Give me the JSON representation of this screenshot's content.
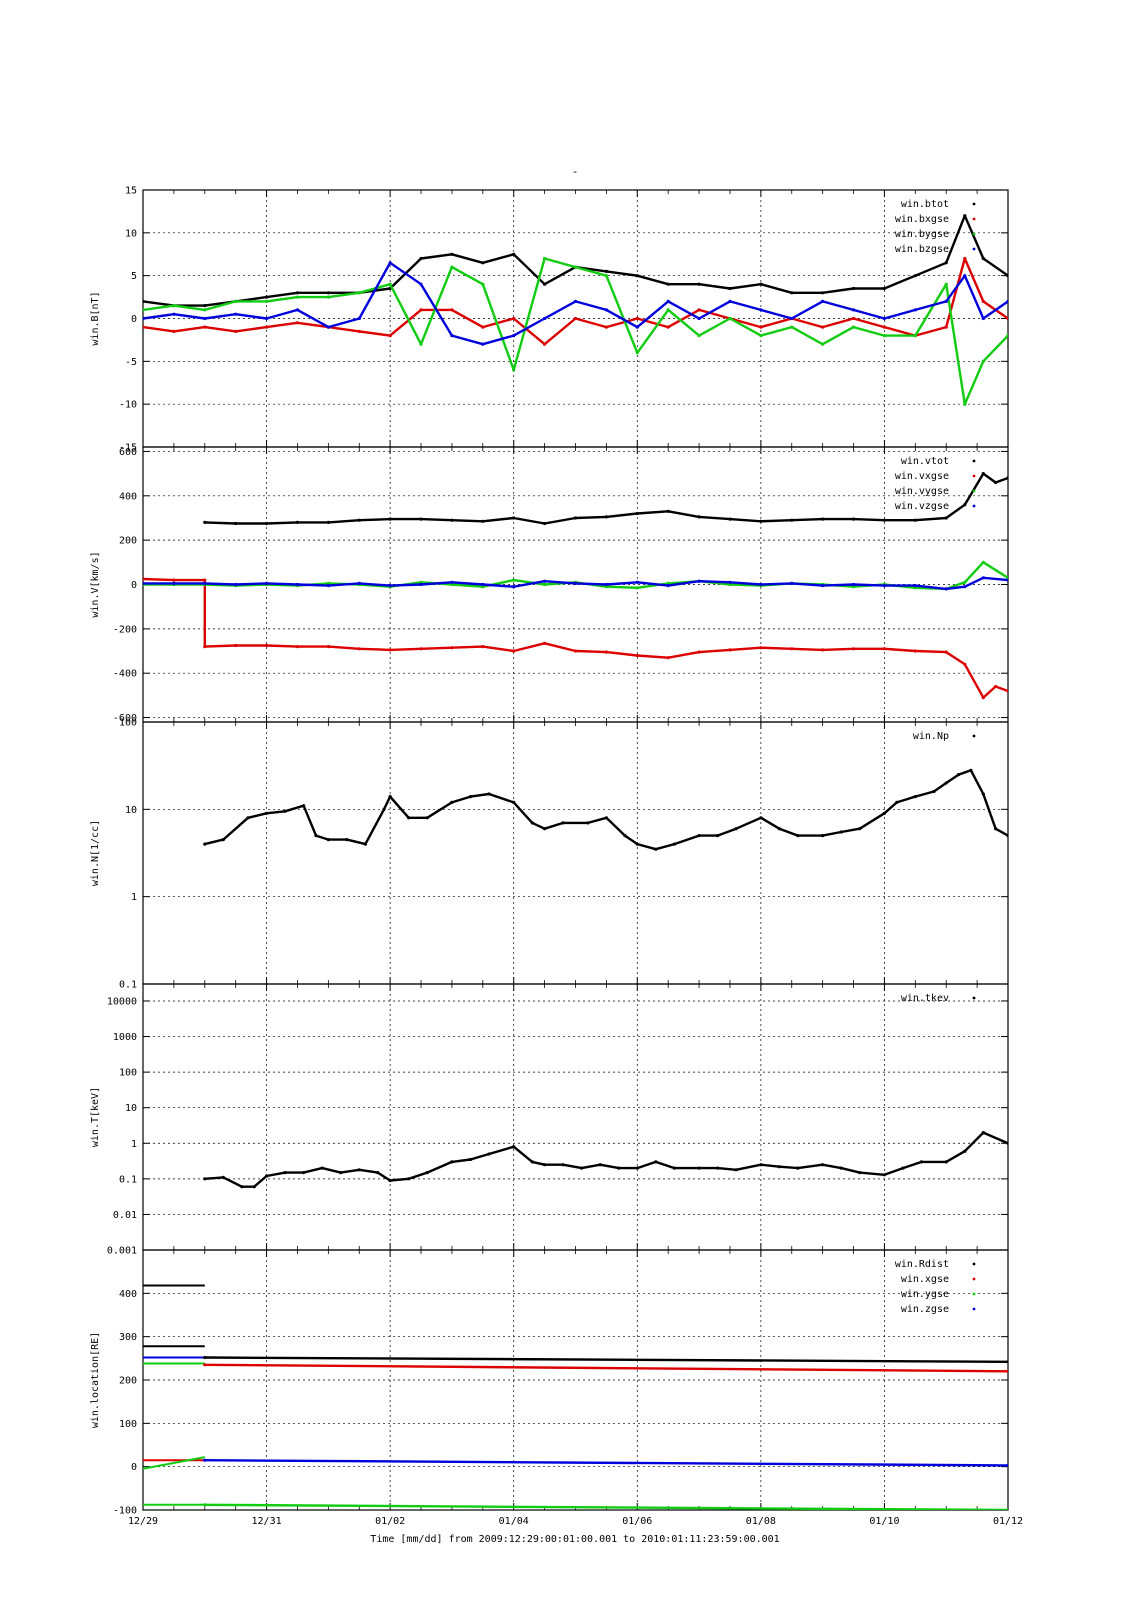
{
  "page_title": "-",
  "x_axis": {
    "label": "Time [mm/dd]  from 2009:12:29:00:01:00.001  to  2010:01:11:23:59:00.001",
    "range_days": [
      0,
      14
    ],
    "ticks": [
      {
        "day": 0,
        "label": "12/29"
      },
      {
        "day": 2,
        "label": "12/31"
      },
      {
        "day": 4,
        "label": "01/02"
      },
      {
        "day": 6,
        "label": "01/04"
      },
      {
        "day": 8,
        "label": "01/06"
      },
      {
        "day": 10,
        "label": "01/08"
      },
      {
        "day": 12,
        "label": "01/10"
      },
      {
        "day": 14,
        "label": "01/12"
      }
    ]
  },
  "colors": {
    "black": "#000000",
    "red": "#dd0000",
    "green": "#11cc11",
    "blue": "#0000dd"
  },
  "chart_data": [
    {
      "type": "line",
      "ylabel": "win.B[nT]",
      "ylim": [
        -15,
        15
      ],
      "scale": "linear",
      "yticks": [
        {
          "v": 15,
          "label": "15"
        },
        {
          "v": 10,
          "label": "10"
        },
        {
          "v": 5,
          "label": "5"
        },
        {
          "v": 0,
          "label": "0"
        },
        {
          "v": -5,
          "label": "-5"
        },
        {
          "v": -10,
          "label": "-10"
        },
        {
          "v": -15,
          "label": "-15"
        }
      ],
      "grid": true,
      "legend": "top-right",
      "series": [
        {
          "name": "win.btot",
          "color": "#000000",
          "x": [
            0,
            0.5,
            1,
            1.5,
            2,
            2.5,
            3,
            3.5,
            4,
            4.5,
            5,
            5.5,
            6,
            6.5,
            7,
            7.5,
            8,
            8.5,
            9,
            9.5,
            10,
            10.5,
            11,
            11.5,
            12,
            12.5,
            13,
            13.3,
            13.6,
            14
          ],
          "y": [
            2,
            1.5,
            1.5,
            2,
            2.5,
            3,
            3,
            3,
            3.5,
            7,
            7.5,
            6.5,
            7.5,
            4,
            6,
            5.5,
            5,
            4,
            4,
            3.5,
            4,
            3,
            3,
            3.5,
            3.5,
            5,
            6.5,
            12,
            7,
            5
          ]
        },
        {
          "name": "win.bxgse",
          "color": "#dd0000",
          "x": [
            0,
            0.5,
            1,
            1.5,
            2,
            2.5,
            3,
            3.5,
            4,
            4.5,
            5,
            5.5,
            6,
            6.5,
            7,
            7.5,
            8,
            8.5,
            9,
            9.5,
            10,
            10.5,
            11,
            11.5,
            12,
            12.5,
            13,
            13.3,
            13.6,
            14
          ],
          "y": [
            -1,
            -1.5,
            -1,
            -1.5,
            -1,
            -0.5,
            -1,
            -1.5,
            -2,
            1,
            1,
            -1,
            0,
            -3,
            0,
            -1,
            0,
            -1,
            1,
            0,
            -1,
            0,
            -1,
            0,
            -1,
            -2,
            -1,
            7,
            2,
            0
          ]
        },
        {
          "name": "win.bygse",
          "color": "#11cc11",
          "x": [
            0,
            0.5,
            1,
            1.5,
            2,
            2.5,
            3,
            3.5,
            4,
            4.5,
            5,
            5.5,
            6,
            6.5,
            7,
            7.5,
            8,
            8.5,
            9,
            9.5,
            10,
            10.5,
            11,
            11.5,
            12,
            12.5,
            13,
            13.3,
            13.6,
            14
          ],
          "y": [
            1,
            1.5,
            1,
            2,
            2,
            2.5,
            2.5,
            3,
            4,
            -3,
            6,
            4,
            -6,
            7,
            6,
            5,
            -4,
            1,
            -2,
            0,
            -2,
            -1,
            -3,
            -1,
            -2,
            -2,
            4,
            -10,
            -5,
            -2
          ]
        },
        {
          "name": "win.bzgse",
          "color": "#0000dd",
          "x": [
            0,
            0.5,
            1,
            1.5,
            2,
            2.5,
            3,
            3.5,
            4,
            4.5,
            5,
            5.5,
            6,
            6.5,
            7,
            7.5,
            8,
            8.5,
            9,
            9.5,
            10,
            10.5,
            11,
            11.5,
            12,
            12.5,
            13,
            13.3,
            13.6,
            14
          ],
          "y": [
            0,
            0.5,
            0,
            0.5,
            0,
            1,
            -1,
            0,
            6.5,
            4,
            -2,
            -3,
            -2,
            0,
            2,
            1,
            -1,
            2,
            0,
            2,
            1,
            0,
            2,
            1,
            0,
            1,
            2,
            5,
            0,
            2
          ]
        }
      ]
    },
    {
      "type": "line",
      "ylabel": "win.V[km/s]",
      "ylim": [
        -620,
        620
      ],
      "scale": "linear",
      "yticks": [
        {
          "v": 600,
          "label": "600"
        },
        {
          "v": 400,
          "label": "400"
        },
        {
          "v": 200,
          "label": "200"
        },
        {
          "v": 0,
          "label": "0"
        },
        {
          "v": -200,
          "label": "-200"
        },
        {
          "v": -400,
          "label": "-400"
        },
        {
          "v": -600,
          "label": "-600"
        }
      ],
      "grid": true,
      "legend": "top-right",
      "series": [
        {
          "name": "win.vtot",
          "color": "#000000",
          "x": [
            1,
            1.5,
            2,
            2.5,
            3,
            3.5,
            4,
            4.5,
            5,
            5.5,
            6,
            6.5,
            7,
            7.5,
            8,
            8.5,
            9,
            9.5,
            10,
            10.5,
            11,
            11.5,
            12,
            12.5,
            13,
            13.3,
            13.6,
            13.8,
            14
          ],
          "y": [
            280,
            275,
            275,
            280,
            280,
            290,
            295,
            295,
            290,
            285,
            300,
            275,
            300,
            305,
            320,
            330,
            305,
            295,
            285,
            290,
            295,
            295,
            290,
            290,
            300,
            360,
            500,
            460,
            480
          ]
        },
        {
          "name": "win.vxgse",
          "color": "#dd0000",
          "x": [
            0,
            0.5,
            1,
            1,
            1.5,
            2,
            2.5,
            3,
            3.5,
            4,
            4.5,
            5,
            5.5,
            6,
            6.5,
            7,
            7.5,
            8,
            8.5,
            9,
            9.5,
            10,
            10.5,
            11,
            11.5,
            12,
            12.5,
            13,
            13.3,
            13.6,
            13.8,
            14
          ],
          "y": [
            25,
            20,
            20,
            -280,
            -275,
            -275,
            -280,
            -280,
            -290,
            -295,
            -290,
            -285,
            -280,
            -300,
            -265,
            -300,
            -305,
            -320,
            -330,
            -305,
            -295,
            -285,
            -290,
            -295,
            -290,
            -290,
            -300,
            -305,
            -360,
            -510,
            -460,
            -480
          ]
        },
        {
          "name": "win.vygse",
          "color": "#11cc11",
          "x": [
            0,
            0.5,
            1,
            1.5,
            2,
            2.5,
            3,
            3.5,
            4,
            4.5,
            5,
            5.5,
            6,
            6.5,
            7,
            7.5,
            8,
            8.5,
            9,
            9.5,
            10,
            10.5,
            11,
            11.5,
            12,
            12.5,
            13,
            13.3,
            13.6,
            14
          ],
          "y": [
            0,
            0,
            0,
            -5,
            0,
            -5,
            5,
            0,
            -10,
            10,
            0,
            -10,
            20,
            0,
            10,
            -10,
            -15,
            5,
            15,
            0,
            -5,
            5,
            0,
            -10,
            0,
            -15,
            -20,
            10,
            100,
            30
          ]
        },
        {
          "name": "win.vzgse",
          "color": "#0000dd",
          "x": [
            0,
            0.5,
            1,
            1.5,
            2,
            2.5,
            3,
            3.5,
            4,
            4.5,
            5,
            5.5,
            6,
            6.5,
            7,
            7.5,
            8,
            8.5,
            9,
            9.5,
            10,
            10.5,
            11,
            11.5,
            12,
            12.5,
            13,
            13.3,
            13.6,
            14
          ],
          "y": [
            5,
            5,
            5,
            0,
            5,
            0,
            -5,
            5,
            -5,
            0,
            10,
            0,
            -10,
            15,
            5,
            0,
            10,
            -5,
            15,
            10,
            0,
            5,
            -5,
            0,
            -5,
            -5,
            -20,
            -10,
            30,
            20
          ]
        }
      ]
    },
    {
      "type": "line",
      "ylabel": "win.N[1/cc]",
      "ylim": [
        0.1,
        100
      ],
      "scale": "log",
      "yticks": [
        {
          "v": 100,
          "label": "100"
        },
        {
          "v": 10,
          "label": "10"
        },
        {
          "v": 1,
          "label": "1"
        },
        {
          "v": 0.1,
          "label": "0.1"
        }
      ],
      "grid": true,
      "legend": "top-right",
      "series": [
        {
          "name": "win.Np",
          "color": "#000000",
          "x": [
            1,
            1.3,
            1.7,
            2,
            2.3,
            2.6,
            2.8,
            3,
            3.3,
            3.6,
            3.9,
            4,
            4.3,
            4.6,
            5,
            5.3,
            5.6,
            6,
            6.3,
            6.5,
            6.8,
            7.2,
            7.5,
            7.8,
            8,
            8.3,
            8.6,
            9,
            9.3,
            9.6,
            10,
            10.3,
            10.6,
            11,
            11.3,
            11.6,
            12,
            12.2,
            12.5,
            12.8,
            13,
            13.2,
            13.4,
            13.6,
            13.8,
            14
          ],
          "y": [
            4,
            4.5,
            8,
            9,
            9.5,
            11,
            5,
            4.5,
            4.5,
            4,
            10,
            14,
            8,
            8,
            12,
            14,
            15,
            12,
            7,
            6,
            7,
            7,
            8,
            5,
            4,
            3.5,
            4,
            5,
            5,
            6,
            8,
            6,
            5,
            5,
            5.5,
            6,
            9,
            12,
            14,
            16,
            20,
            25,
            28,
            15,
            6,
            5
          ]
        }
      ]
    },
    {
      "type": "line",
      "ylabel": "win.T[keV]",
      "ylim": [
        0.001,
        30000
      ],
      "scale": "log",
      "yticks": [
        {
          "v": 10000,
          "label": "10000"
        },
        {
          "v": 1000,
          "label": "1000"
        },
        {
          "v": 100,
          "label": "100"
        },
        {
          "v": 10,
          "label": "10"
        },
        {
          "v": 1,
          "label": "1"
        },
        {
          "v": 0.1,
          "label": "0.1"
        },
        {
          "v": 0.01,
          "label": "0.01"
        },
        {
          "v": 0.001,
          "label": "0.001"
        }
      ],
      "grid": true,
      "legend": "top-right",
      "series": [
        {
          "name": "win.tkev",
          "color": "#000000",
          "x": [
            1,
            1.3,
            1.6,
            1.8,
            2,
            2.3,
            2.6,
            2.9,
            3.2,
            3.5,
            3.8,
            4,
            4.3,
            4.6,
            5,
            5.3,
            5.6,
            6,
            6.3,
            6.5,
            6.8,
            7.1,
            7.4,
            7.7,
            8,
            8.3,
            8.6,
            9,
            9.3,
            9.6,
            10,
            10.3,
            10.6,
            11,
            11.3,
            11.6,
            12,
            12.3,
            12.6,
            13,
            13.3,
            13.6,
            14
          ],
          "y": [
            0.1,
            0.11,
            0.06,
            0.06,
            0.12,
            0.15,
            0.15,
            0.2,
            0.15,
            0.18,
            0.15,
            0.09,
            0.1,
            0.15,
            0.3,
            0.35,
            0.5,
            0.8,
            0.3,
            0.25,
            0.25,
            0.2,
            0.25,
            0.2,
            0.2,
            0.3,
            0.2,
            0.2,
            0.2,
            0.18,
            0.25,
            0.22,
            0.2,
            0.25,
            0.2,
            0.15,
            0.13,
            0.2,
            0.3,
            0.3,
            0.6,
            2,
            1
          ]
        }
      ]
    },
    {
      "type": "line",
      "ylabel": "win.location[RE]",
      "ylim": [
        -100,
        500
      ],
      "scale": "linear",
      "yticks": [
        {
          "v": 400,
          "label": "400"
        },
        {
          "v": 300,
          "label": "300"
        },
        {
          "v": 200,
          "label": "200"
        },
        {
          "v": 100,
          "label": "100"
        },
        {
          "v": 0,
          "label": "0"
        },
        {
          "v": -100,
          "label": "-100"
        }
      ],
      "grid": true,
      "legend": "top-right",
      "series": [
        {
          "name": "win.Rdist",
          "color": "#000000",
          "x": [
            1,
            14
          ],
          "y": [
            252,
            242
          ]
        },
        {
          "name": "win.xgse",
          "color": "#dd0000",
          "x": [
            1,
            14
          ],
          "y": [
            235,
            220
          ]
        },
        {
          "name": "win.ygse",
          "color": "#11cc11",
          "x": [
            1,
            14
          ],
          "y": [
            -88,
            -100
          ]
        },
        {
          "name": "win.zgse",
          "color": "#0000dd",
          "x": [
            1,
            14
          ],
          "y": [
            15,
            3
          ]
        }
      ],
      "extra_segments": [
        {
          "color": "#000000",
          "x": [
            0,
            1
          ],
          "y": [
            418,
            418
          ]
        },
        {
          "color": "#000000",
          "x": [
            0,
            1
          ],
          "y": [
            278,
            278
          ]
        },
        {
          "color": "#0000dd",
          "x": [
            0,
            1
          ],
          "y": [
            252,
            252
          ]
        },
        {
          "color": "#11cc11",
          "x": [
            0,
            1
          ],
          "y": [
            238,
            238
          ]
        },
        {
          "color": "#dd0000",
          "x": [
            0,
            1
          ],
          "y": [
            15,
            15
          ]
        },
        {
          "color": "#11cc11",
          "x": [
            0,
            1
          ],
          "y": [
            -5,
            22
          ]
        },
        {
          "color": "#11cc11",
          "x": [
            0,
            1
          ],
          "y": [
            -88,
            -88
          ]
        }
      ]
    }
  ]
}
